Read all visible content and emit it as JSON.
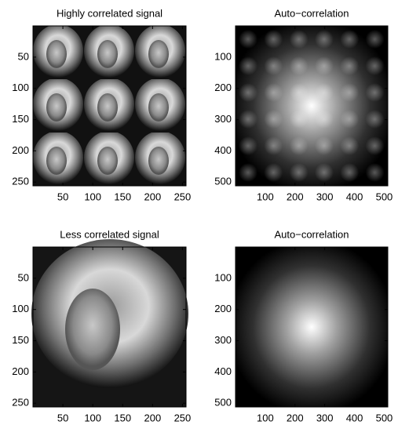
{
  "chart_data": [
    {
      "type": "image",
      "title": "Highly correlated signal",
      "xlim": [
        0,
        256
      ],
      "ylim": [
        0,
        256
      ],
      "xticks": [
        50,
        100,
        150,
        200,
        250
      ],
      "yticks": [
        50,
        100,
        150,
        200,
        250
      ],
      "y_reversed": true
    },
    {
      "type": "image",
      "title": "Auto−correlation",
      "xlim": [
        0,
        512
      ],
      "ylim": [
        0,
        512
      ],
      "xticks": [
        100,
        200,
        300,
        400,
        500
      ],
      "yticks": [
        100,
        200,
        300,
        400,
        500
      ],
      "y_reversed": true
    },
    {
      "type": "image",
      "title": "Less correlated signal",
      "xlim": [
        0,
        256
      ],
      "ylim": [
        0,
        256
      ],
      "xticks": [
        50,
        100,
        150,
        200,
        250
      ],
      "yticks": [
        50,
        100,
        150,
        200,
        250
      ],
      "y_reversed": true
    },
    {
      "type": "image",
      "title": "Auto−correlation",
      "xlim": [
        0,
        512
      ],
      "ylim": [
        0,
        512
      ],
      "xticks": [
        100,
        200,
        300,
        400,
        500
      ],
      "yticks": [
        100,
        200,
        300,
        400,
        500
      ],
      "y_reversed": true
    }
  ]
}
